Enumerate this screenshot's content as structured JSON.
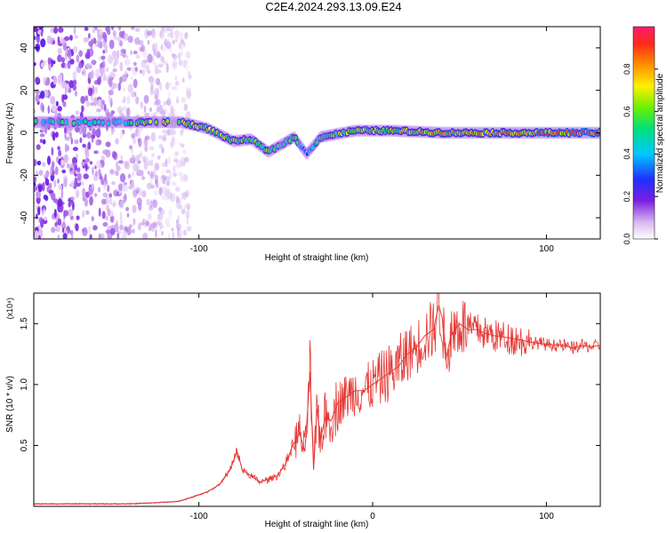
{
  "figure": {
    "title": "C2E4.2024.293.13.09.E24"
  },
  "colors": {
    "snr_line": "#e53935",
    "axis": "#000000"
  },
  "chart_data": [
    {
      "type": "heatmap",
      "xlabel": "Height of straight line (km)",
      "ylabel": "Frequency (Hz)",
      "xlim": [
        -195,
        131
      ],
      "ylim": [
        -50,
        50
      ],
      "xticks": [
        -100,
        100
      ],
      "xtick_labels": [
        "-100",
        "100"
      ],
      "yticks": [
        -40,
        -20,
        0,
        20,
        40
      ],
      "ytick_labels": [
        "-40",
        "-20",
        "0",
        "20",
        "40"
      ],
      "colorbar": {
        "label": "Normalized spectral amplitude",
        "range": [
          0,
          1
        ],
        "ticks": [
          0.0,
          0.2,
          0.4,
          0.6,
          0.8
        ],
        "tick_labels": [
          "0.0",
          "0.2",
          "0.4",
          "0.6",
          "0.8"
        ],
        "colormap": "rainbow"
      },
      "ridge": [
        {
          "x": -195,
          "y": 5,
          "amp": 0.45
        },
        {
          "x": -170,
          "y": 5,
          "amp": 0.45
        },
        {
          "x": -150,
          "y": 5,
          "amp": 0.4
        },
        {
          "x": -130,
          "y": 5,
          "amp": 0.6
        },
        {
          "x": -110,
          "y": 5,
          "amp": 0.7
        },
        {
          "x": -95,
          "y": 2,
          "amp": 0.6
        },
        {
          "x": -80,
          "y": -4,
          "amp": 0.55
        },
        {
          "x": -70,
          "y": -3,
          "amp": 0.5
        },
        {
          "x": -60,
          "y": -9,
          "amp": 0.55
        },
        {
          "x": -45,
          "y": -2,
          "amp": 0.5
        },
        {
          "x": -38,
          "y": -10,
          "amp": 0.3
        },
        {
          "x": -30,
          "y": -2,
          "amp": 0.5
        },
        {
          "x": -10,
          "y": 1,
          "amp": 0.6
        },
        {
          "x": 10,
          "y": 1,
          "amp": 0.65
        },
        {
          "x": 40,
          "y": 0,
          "amp": 0.7
        },
        {
          "x": 80,
          "y": 0,
          "amp": 0.75
        },
        {
          "x": 110,
          "y": 0,
          "amp": 0.8
        },
        {
          "x": 131,
          "y": 0,
          "amp": 1.0
        }
      ],
      "noise_region": {
        "x": [
          -195,
          -105
        ],
        "y": [
          -50,
          50
        ]
      }
    },
    {
      "type": "line",
      "xlabel": "Height of straight line (km)",
      "ylabel": "SNR (10 * v/v)",
      "y_multiplier_label": "(x10⁴)",
      "xlim": [
        -195,
        131
      ],
      "ylim": [
        0,
        1.75
      ],
      "xticks": [
        -100,
        0,
        100
      ],
      "xtick_labels": [
        "-100",
        "0",
        "100"
      ],
      "yticks": [
        0.5,
        1.0,
        1.5
      ],
      "ytick_labels": [
        "0.5",
        "1.0",
        "1.5"
      ],
      "series": [
        {
          "x": [
            -195,
            -180,
            -160,
            -140,
            -125,
            -112,
            -105,
            -95,
            -88,
            -82,
            -78,
            -75,
            -70,
            -65,
            -60,
            -55,
            -50,
            -46,
            -42,
            -39,
            -36,
            -34,
            -32,
            -30,
            -27,
            -24,
            -20,
            -15,
            -10,
            -5,
            0,
            5,
            10,
            15,
            20,
            25,
            30,
            35,
            38,
            40,
            42,
            45,
            50,
            55,
            60,
            65,
            70,
            80,
            90,
            100,
            110,
            115,
            120,
            125,
            131
          ],
          "y": [
            0.02,
            0.02,
            0.02,
            0.02,
            0.03,
            0.04,
            0.07,
            0.12,
            0.18,
            0.3,
            0.45,
            0.3,
            0.25,
            0.2,
            0.22,
            0.25,
            0.35,
            0.5,
            0.6,
            0.45,
            1.1,
            0.3,
            0.8,
            0.55,
            0.75,
            0.7,
            0.85,
            0.9,
            0.95,
            0.95,
            1.0,
            1.05,
            1.1,
            1.15,
            1.25,
            1.3,
            1.4,
            1.45,
            1.65,
            1.55,
            1.2,
            1.4,
            1.5,
            1.45,
            1.45,
            1.42,
            1.4,
            1.38,
            1.35,
            1.33,
            1.32,
            1.3,
            1.32,
            1.31,
            1.32
          ]
        }
      ]
    }
  ]
}
